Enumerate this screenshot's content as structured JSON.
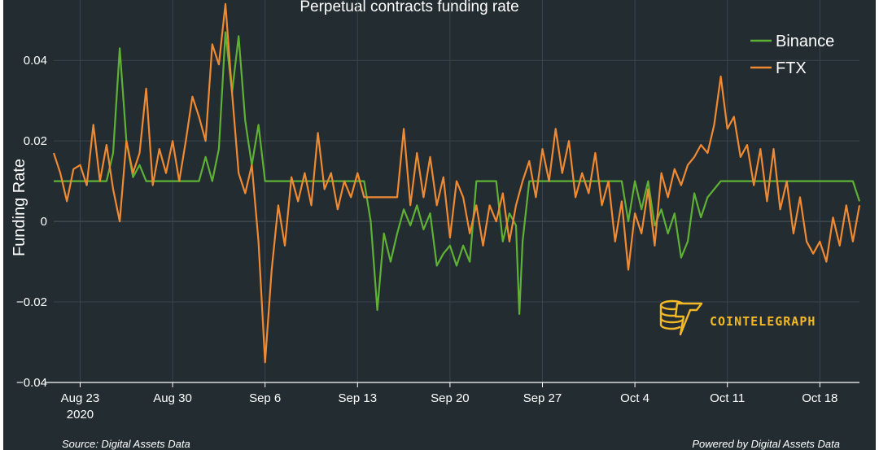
{
  "chart_data": {
    "type": "line",
    "title": "Perpetual contracts funding rate",
    "ylabel": "Funding Rate",
    "xlabel": "",
    "x_start": "2020-08-21",
    "x_end": "2020-10-21",
    "xlim": [
      "2020-08-21",
      "2020-10-21"
    ],
    "ylim": [
      -0.04,
      0.055
    ],
    "y_ticks": [
      {
        "value": 0.04,
        "label": "0.04"
      },
      {
        "value": 0.02,
        "label": "0.02"
      },
      {
        "value": 0,
        "label": "0"
      },
      {
        "value": -0.02,
        "label": "−0.02"
      },
      {
        "value": -0.04,
        "label": "−0.04"
      }
    ],
    "x_ticks": [
      {
        "date": "2020-08-23",
        "label": "Aug 23",
        "sublabel": "2020"
      },
      {
        "date": "2020-08-30",
        "label": "Aug 30"
      },
      {
        "date": "2020-09-06",
        "label": "Sep 6"
      },
      {
        "date": "2020-09-13",
        "label": "Sep 13"
      },
      {
        "date": "2020-09-20",
        "label": "Sep 20"
      },
      {
        "date": "2020-09-27",
        "label": "Sep 27"
      },
      {
        "date": "2020-10-04",
        "label": "Oct 4"
      },
      {
        "date": "2020-10-11",
        "label": "Oct 11"
      },
      {
        "date": "2020-10-18",
        "label": "Oct 18"
      }
    ],
    "grid": true,
    "legend_position": "top-right",
    "series": [
      {
        "name": "Binance",
        "color": "#5fb135",
        "points": [
          [
            "2020-08-21",
            0.01
          ],
          [
            "2020-08-25",
            0.01
          ],
          [
            "2020-08-25 12:00",
            0.017
          ],
          [
            "2020-08-26",
            0.043
          ],
          [
            "2020-08-26 12:00",
            0.02
          ],
          [
            "2020-08-27",
            0.011
          ],
          [
            "2020-08-27 12:00",
            0.014
          ],
          [
            "2020-08-28",
            0.01
          ],
          [
            "2020-09-01",
            0.01
          ],
          [
            "2020-09-01 12:00",
            0.016
          ],
          [
            "2020-09-02",
            0.01
          ],
          [
            "2020-09-02 12:00",
            0.018
          ],
          [
            "2020-09-03",
            0.047
          ],
          [
            "2020-09-03 12:00",
            0.032
          ],
          [
            "2020-09-04",
            0.046
          ],
          [
            "2020-09-04 12:00",
            0.025
          ],
          [
            "2020-09-05",
            0.014
          ],
          [
            "2020-09-05 12:00",
            0.024
          ],
          [
            "2020-09-06",
            0.01
          ],
          [
            "2020-09-13 12:00",
            0.01
          ],
          [
            "2020-09-14",
            0.0
          ],
          [
            "2020-09-14 12:00",
            -0.022
          ],
          [
            "2020-09-15",
            -0.003
          ],
          [
            "2020-09-15 12:00",
            -0.01
          ],
          [
            "2020-09-16",
            -0.003
          ],
          [
            "2020-09-16 12:00",
            0.003
          ],
          [
            "2020-09-17",
            -0.001
          ],
          [
            "2020-09-17 12:00",
            0.004
          ],
          [
            "2020-09-18",
            -0.002
          ],
          [
            "2020-09-18 12:00",
            0.002
          ],
          [
            "2020-09-19",
            -0.011
          ],
          [
            "2020-09-19 12:00",
            -0.008
          ],
          [
            "2020-09-20",
            -0.006
          ],
          [
            "2020-09-20 12:00",
            -0.011
          ],
          [
            "2020-09-21",
            -0.006
          ],
          [
            "2020-09-21 12:00",
            -0.01
          ],
          [
            "2020-09-22",
            0.01
          ],
          [
            "2020-09-23 12:00",
            0.01
          ],
          [
            "2020-09-24",
            -0.005
          ],
          [
            "2020-09-24 12:00",
            0.002
          ],
          [
            "2020-09-25",
            -0.001
          ],
          [
            "2020-09-25 06:00",
            -0.023
          ],
          [
            "2020-09-25 12:00",
            -0.005
          ],
          [
            "2020-09-26",
            0.01
          ],
          [
            "2020-10-03",
            0.01
          ],
          [
            "2020-10-03 12:00",
            0.0
          ],
          [
            "2020-10-04",
            0.01
          ],
          [
            "2020-10-04 12:00",
            0.003
          ],
          [
            "2020-10-05",
            0.01
          ],
          [
            "2020-10-05 12:00",
            -0.001
          ],
          [
            "2020-10-06",
            0.003
          ],
          [
            "2020-10-06 12:00",
            -0.003
          ],
          [
            "2020-10-07",
            0.002
          ],
          [
            "2020-10-07 12:00",
            -0.009
          ],
          [
            "2020-10-08",
            -0.005
          ],
          [
            "2020-10-08 12:00",
            0.007
          ],
          [
            "2020-10-09",
            0.001
          ],
          [
            "2020-10-09 12:00",
            0.006
          ],
          [
            "2020-10-10",
            0.008
          ],
          [
            "2020-10-10 12:00",
            0.01
          ],
          [
            "2020-10-20 12:00",
            0.01
          ],
          [
            "2020-10-21",
            0.005
          ]
        ]
      },
      {
        "name": "FTX",
        "color": "#f08a32",
        "points": [
          [
            "2020-08-21",
            0.017
          ],
          [
            "2020-08-21 12:00",
            0.012
          ],
          [
            "2020-08-22",
            0.005
          ],
          [
            "2020-08-22 12:00",
            0.013
          ],
          [
            "2020-08-23",
            0.014
          ],
          [
            "2020-08-23 12:00",
            0.009
          ],
          [
            "2020-08-24",
            0.024
          ],
          [
            "2020-08-24 12:00",
            0.01
          ],
          [
            "2020-08-25",
            0.019
          ],
          [
            "2020-08-25 12:00",
            0.008
          ],
          [
            "2020-08-26",
            0.0
          ],
          [
            "2020-08-26 12:00",
            0.02
          ],
          [
            "2020-08-27",
            0.012
          ],
          [
            "2020-08-27 12:00",
            0.017
          ],
          [
            "2020-08-28",
            0.033
          ],
          [
            "2020-08-28 12:00",
            0.009
          ],
          [
            "2020-08-29",
            0.018
          ],
          [
            "2020-08-29 12:00",
            0.012
          ],
          [
            "2020-08-30",
            0.02
          ],
          [
            "2020-08-30 12:00",
            0.01
          ],
          [
            "2020-08-31",
            0.02
          ],
          [
            "2020-08-31 12:00",
            0.031
          ],
          [
            "2020-09-01",
            0.026
          ],
          [
            "2020-09-01 12:00",
            0.02
          ],
          [
            "2020-09-02",
            0.044
          ],
          [
            "2020-09-02 12:00",
            0.039
          ],
          [
            "2020-09-03",
            0.054
          ],
          [
            "2020-09-03 12:00",
            0.032
          ],
          [
            "2020-09-04",
            0.012
          ],
          [
            "2020-09-04 12:00",
            0.007
          ],
          [
            "2020-09-05",
            0.014
          ],
          [
            "2020-09-05 12:00",
            -0.005
          ],
          [
            "2020-09-06",
            -0.035
          ],
          [
            "2020-09-06 12:00",
            -0.012
          ],
          [
            "2020-09-07",
            0.004
          ],
          [
            "2020-09-07 12:00",
            -0.006
          ],
          [
            "2020-09-08",
            0.011
          ],
          [
            "2020-09-08 12:00",
            0.005
          ],
          [
            "2020-09-09",
            0.012
          ],
          [
            "2020-09-09 12:00",
            0.004
          ],
          [
            "2020-09-10",
            0.022
          ],
          [
            "2020-09-10 12:00",
            0.008
          ],
          [
            "2020-09-11",
            0.012
          ],
          [
            "2020-09-11 12:00",
            0.003
          ],
          [
            "2020-09-12",
            0.01
          ],
          [
            "2020-09-12 12:00",
            0.006
          ],
          [
            "2020-09-13",
            0.012
          ],
          [
            "2020-09-13 12:00",
            0.006
          ],
          [
            "2020-09-16",
            0.006
          ],
          [
            "2020-09-16 12:00",
            0.023
          ],
          [
            "2020-09-17",
            0.004
          ],
          [
            "2020-09-17 12:00",
            0.017
          ],
          [
            "2020-09-18",
            0.006
          ],
          [
            "2020-09-18 12:00",
            0.016
          ],
          [
            "2020-09-19",
            0.004
          ],
          [
            "2020-09-19 12:00",
            0.011
          ],
          [
            "2020-09-20",
            -0.004
          ],
          [
            "2020-09-20 12:00",
            0.01
          ],
          [
            "2020-09-21",
            0.006
          ],
          [
            "2020-09-21 12:00",
            -0.003
          ],
          [
            "2020-09-22",
            0.004
          ],
          [
            "2020-09-22 12:00",
            -0.006
          ],
          [
            "2020-09-23",
            0.004
          ],
          [
            "2020-09-23 12:00",
            0.0
          ],
          [
            "2020-09-24",
            0.007
          ],
          [
            "2020-09-24 12:00",
            -0.005
          ],
          [
            "2020-09-25",
            0.004
          ],
          [
            "2020-09-25 12:00",
            0.01
          ],
          [
            "2020-09-26",
            0.015
          ],
          [
            "2020-09-26 12:00",
            0.006
          ],
          [
            "2020-09-27",
            0.018
          ],
          [
            "2020-09-27 12:00",
            0.01
          ],
          [
            "2020-09-28",
            0.023
          ],
          [
            "2020-09-28 12:00",
            0.012
          ],
          [
            "2020-09-29",
            0.02
          ],
          [
            "2020-09-29 12:00",
            0.006
          ],
          [
            "2020-09-30",
            0.012
          ],
          [
            "2020-09-30 12:00",
            0.007
          ],
          [
            "2020-10-01",
            0.017
          ],
          [
            "2020-10-01 12:00",
            0.004
          ],
          [
            "2020-10-02",
            0.01
          ],
          [
            "2020-10-02 12:00",
            -0.005
          ],
          [
            "2020-10-03",
            0.005
          ],
          [
            "2020-10-03 12:00",
            -0.012
          ],
          [
            "2020-10-04",
            0.002
          ],
          [
            "2020-10-04 12:00",
            -0.003
          ],
          [
            "2020-10-05",
            0.008
          ],
          [
            "2020-10-05 12:00",
            -0.006
          ],
          [
            "2020-10-06",
            0.012
          ],
          [
            "2020-10-06 12:00",
            0.006
          ],
          [
            "2020-10-07",
            0.013
          ],
          [
            "2020-10-07 12:00",
            0.009
          ],
          [
            "2020-10-08",
            0.014
          ],
          [
            "2020-10-08 12:00",
            0.016
          ],
          [
            "2020-10-09",
            0.019
          ],
          [
            "2020-10-09 12:00",
            0.017
          ],
          [
            "2020-10-10",
            0.024
          ],
          [
            "2020-10-10 12:00",
            0.036
          ],
          [
            "2020-10-11",
            0.023
          ],
          [
            "2020-10-11 12:00",
            0.026
          ],
          [
            "2020-10-12",
            0.016
          ],
          [
            "2020-10-12 12:00",
            0.019
          ],
          [
            "2020-10-13",
            0.009
          ],
          [
            "2020-10-13 12:00",
            0.018
          ],
          [
            "2020-10-14",
            0.005
          ],
          [
            "2020-10-14 12:00",
            0.018
          ],
          [
            "2020-10-15",
            0.003
          ],
          [
            "2020-10-15 12:00",
            0.01
          ],
          [
            "2020-10-16",
            -0.003
          ],
          [
            "2020-10-16 12:00",
            0.006
          ],
          [
            "2020-10-17",
            -0.005
          ],
          [
            "2020-10-17 12:00",
            -0.008
          ],
          [
            "2020-10-18",
            -0.005
          ],
          [
            "2020-10-18 12:00",
            -0.01
          ],
          [
            "2020-10-19",
            0.001
          ],
          [
            "2020-10-19 12:00",
            -0.006
          ],
          [
            "2020-10-20",
            0.004
          ],
          [
            "2020-10-20 12:00",
            -0.005
          ],
          [
            "2020-10-21",
            0.004
          ]
        ]
      }
    ]
  },
  "footer": {
    "source": "Source: Digital Assets Data",
    "powered": "Powered by Digital Assets Data"
  },
  "brand": {
    "name": "COINTELEGRAPH",
    "logo_icon": "cointelegraph-logo-icon",
    "color": "#f2b825"
  },
  "colors": {
    "background": "#232c31",
    "grid": "#3a454b",
    "axis": "#ffffff"
  }
}
